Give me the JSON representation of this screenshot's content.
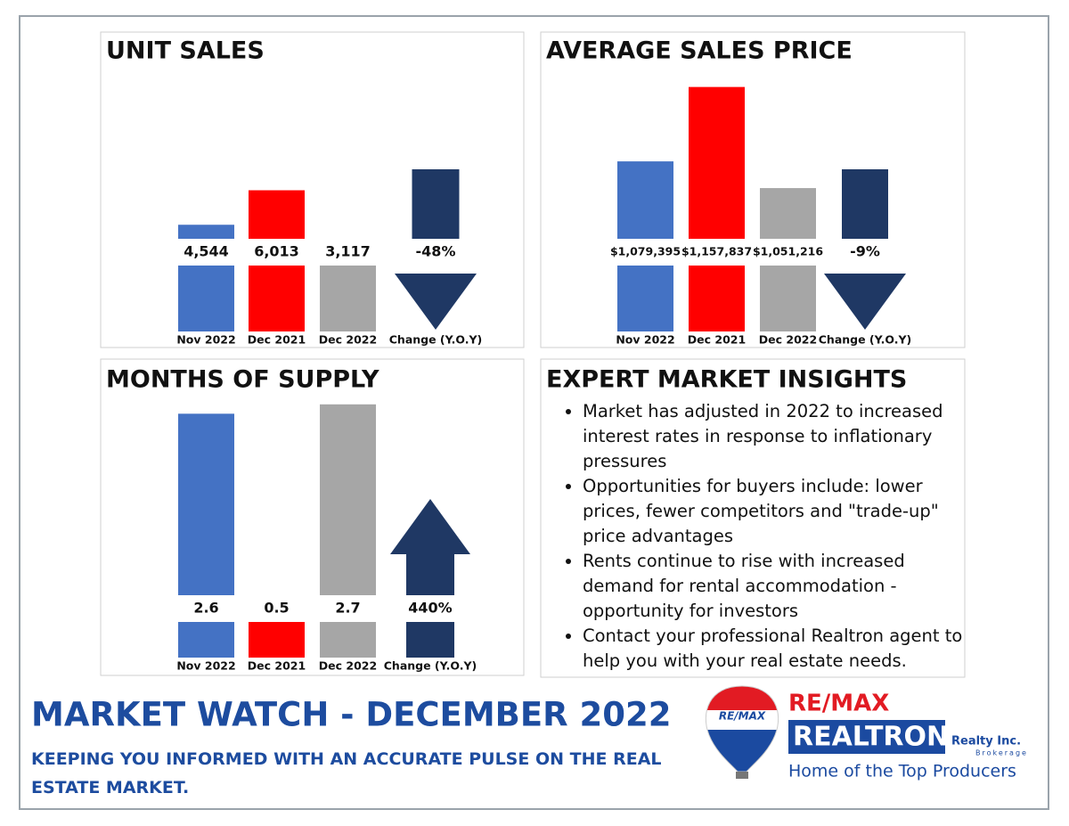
{
  "chart_data": [
    {
      "type": "bar",
      "title": "UNIT SALES",
      "categories": [
        "Nov 2022",
        "Dec 2021",
        "Dec 2022"
      ],
      "values": [
        4544,
        6013,
        3117
      ],
      "value_labels": [
        "4,544",
        "6,013",
        "3,117"
      ],
      "colors": [
        "#4472c4",
        "#ff0000",
        "#a6a6a6"
      ],
      "ylim": [
        0,
        10700
      ],
      "change": {
        "label": "Change (Y.O.Y)",
        "value": -48,
        "value_label": "-48%",
        "color": "#1f3864"
      }
    },
    {
      "type": "bar",
      "title": "AVERAGE SALES PRICE",
      "categories": [
        "Nov 2022",
        "Dec 2021",
        "Dec 2022"
      ],
      "values": [
        1079395,
        1157837,
        1051216
      ],
      "value_labels": [
        "$1,079,395",
        "$1,157,837",
        "$1,051,216"
      ],
      "colors": [
        "#4472c4",
        "#ff0000",
        "#a6a6a6"
      ],
      "ylim": [
        900000,
        1165000
      ],
      "change": {
        "label": "Change (Y.O.Y)",
        "value": -9,
        "value_label": "-9%",
        "color": "#1f3864"
      }
    },
    {
      "type": "bar",
      "title": "MONTHS OF SUPPLY",
      "categories": [
        "Nov 2022",
        "Dec 2021",
        "Dec 2022"
      ],
      "values": [
        2.6,
        0.5,
        2.7
      ],
      "colors": [
        "#4472c4",
        "#ff0000",
        "#a6a6a6"
      ],
      "ylim": [
        0,
        2.85
      ],
      "change": {
        "label": "Change (Y.O.Y)",
        "value": 440,
        "value_label": "440%",
        "color": "#1f3864"
      }
    }
  ],
  "insights": {
    "title": "EXPERT MARKET INSIGHTS",
    "bullets": [
      "Market has adjusted in 2022 to increased interest rates in response to inflationary pressures",
      "Opportunities for buyers include: lower prices, fewer competitors and \"trade-up\" price advantages",
      "Rents continue to rise with increased demand for rental accommodation - opportunity for investors",
      "Contact your professional Realtron agent to help you with your real estate needs."
    ]
  },
  "footer": {
    "title": "MARKET WATCH - DECEMBER 2022",
    "subtitle": "KEEPING YOU INFORMED WITH AN ACCURATE PULSE ON THE REAL ESTATE MARKET."
  },
  "logo": {
    "balloon": "RE/MAX",
    "brand": "RE/MAX",
    "name": "REALTRON",
    "realty": "Realty Inc.",
    "brokerage": "Brokerage",
    "tagline": "Home of the Top Producers"
  }
}
